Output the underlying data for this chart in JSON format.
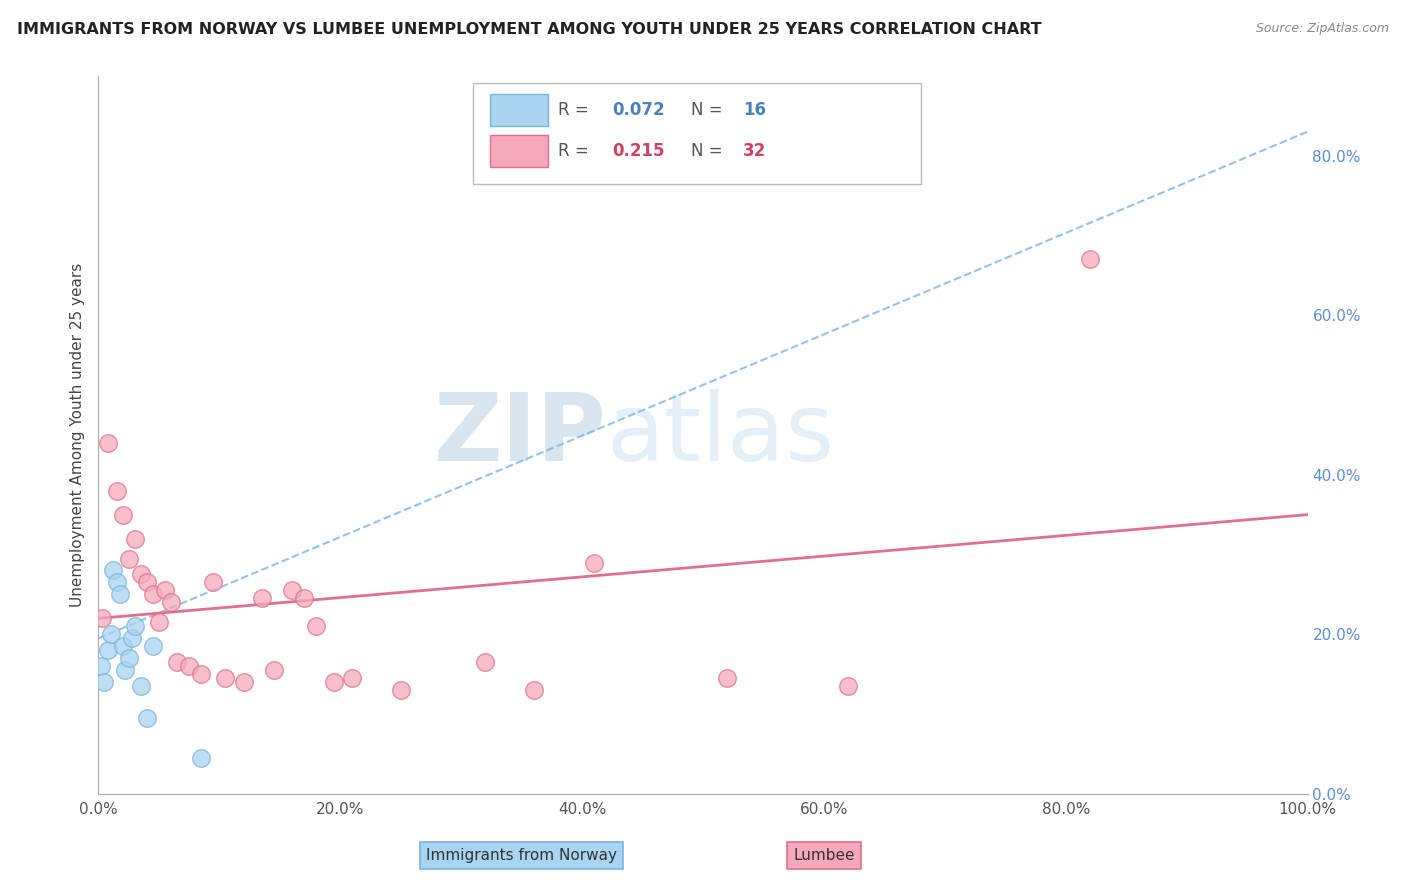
{
  "title": "IMMIGRANTS FROM NORWAY VS LUMBEE UNEMPLOYMENT AMONG YOUTH UNDER 25 YEARS CORRELATION CHART",
  "source": "Source: ZipAtlas.com",
  "ylabel": "Unemployment Among Youth under 25 years",
  "norway_R": 0.072,
  "norway_N": 16,
  "lumbee_R": 0.215,
  "lumbee_N": 32,
  "norway_color": "#a8d4f0",
  "norway_edge": "#7ab3df",
  "lumbee_color": "#f5a8bc",
  "lumbee_edge": "#e07090",
  "trend_norway_color": "#7ab3df",
  "trend_lumbee_color": "#e07090",
  "watermark_zip": "ZIP",
  "watermark_atlas": "atlas",
  "norway_x": [
    0.2,
    0.5,
    0.8,
    1.0,
    1.2,
    1.5,
    1.8,
    2.0,
    2.2,
    2.5,
    2.8,
    3.0,
    3.5,
    4.0,
    4.5,
    8.5
  ],
  "norway_y": [
    16.0,
    14.0,
    18.0,
    20.0,
    28.0,
    26.5,
    25.0,
    18.5,
    15.5,
    17.0,
    19.5,
    21.0,
    13.5,
    9.5,
    18.5,
    4.5
  ],
  "lumbee_x": [
    0.3,
    0.8,
    1.5,
    2.0,
    2.5,
    3.0,
    3.5,
    4.0,
    4.5,
    5.0,
    5.5,
    6.0,
    6.5,
    7.5,
    8.5,
    9.5,
    10.5,
    12.0,
    13.5,
    14.5,
    16.0,
    17.0,
    18.0,
    19.5,
    21.0,
    25.0,
    32.0,
    36.0,
    41.0,
    52.0,
    62.0,
    82.0
  ],
  "lumbee_y": [
    22.0,
    44.0,
    38.0,
    35.0,
    29.5,
    32.0,
    27.5,
    26.5,
    25.0,
    21.5,
    25.5,
    24.0,
    16.5,
    16.0,
    15.0,
    26.5,
    14.5,
    14.0,
    24.5,
    15.5,
    25.5,
    24.5,
    21.0,
    14.0,
    14.5,
    13.0,
    16.5,
    13.0,
    29.0,
    14.5,
    13.5,
    67.0
  ],
  "xlim": [
    0,
    100
  ],
  "ylim": [
    0,
    90
  ],
  "xticks": [
    0,
    20,
    40,
    60,
    80,
    100
  ],
  "xticklabels": [
    "0.0%",
    "20.0%",
    "40.0%",
    "60.0%",
    "80.0%",
    "100.0%"
  ],
  "ytick_right_vals": [
    0,
    20,
    40,
    60,
    80
  ],
  "ytick_right_labels": [
    "0.0%",
    "20.0%",
    "40.0%",
    "60.0%",
    "80.0%"
  ],
  "grid_color": "#cccccc",
  "norway_trend_x0": 0,
  "norway_trend_y0": 19.5,
  "norway_trend_x1": 100,
  "norway_trend_y1": 83.0,
  "lumbee_trend_x0": 0,
  "lumbee_trend_y0": 22.0,
  "lumbee_trend_x1": 100,
  "lumbee_trend_y1": 35.0
}
